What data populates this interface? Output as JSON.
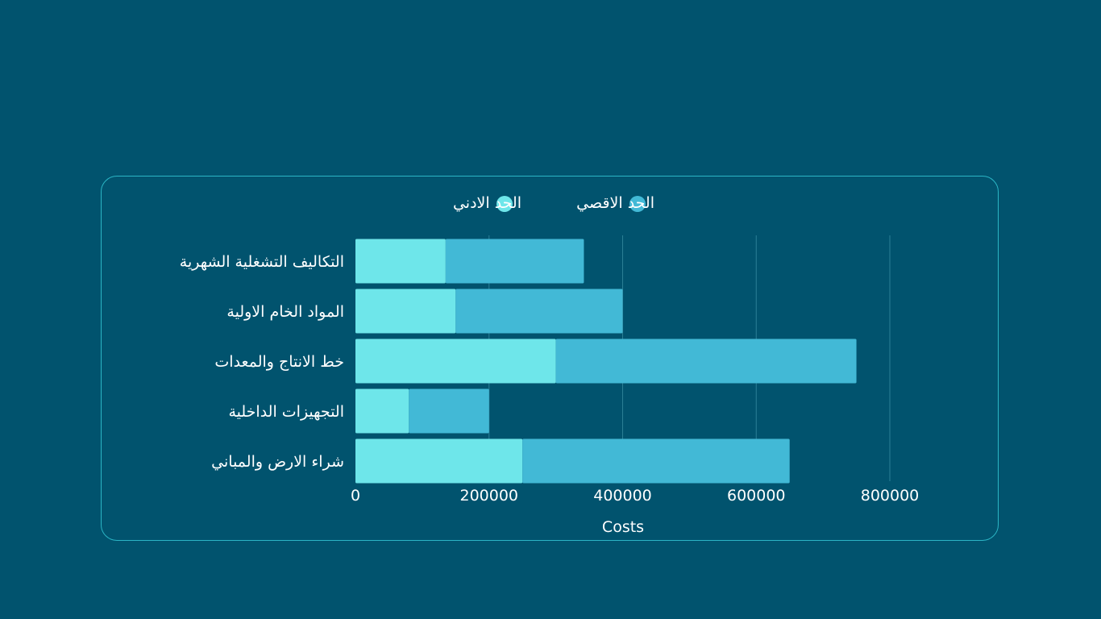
{
  "chart_data": {
    "type": "bar",
    "orientation": "horizontal",
    "stacked": true,
    "categories": [
      "التكاليف التشغلية الشهرية",
      "المواد الخام الاولية",
      "خط الانتاج والمعدات",
      "التجهيزات الداخلية",
      "شراء الارض والمباني"
    ],
    "series": [
      {
        "name": "الحد الادني",
        "values": [
          135000,
          150000,
          300000,
          80000,
          250000
        ],
        "color": "#6ee6ea"
      },
      {
        "name": "الحد الاقصي",
        "values": [
          207000,
          250000,
          450000,
          120000,
          400000
        ],
        "color": "#42b9d6"
      }
    ],
    "xlabel": "Costs",
    "xlim": [
      0,
      800000
    ],
    "xticks": [
      "0",
      "200000",
      "400000",
      "600000",
      "800000"
    ],
    "grid": true,
    "legend_position": "top",
    "colors": {
      "background": "#01536e",
      "border": "#2bb5c5",
      "grid": "#2b7f95",
      "text": "#ffffff"
    }
  }
}
